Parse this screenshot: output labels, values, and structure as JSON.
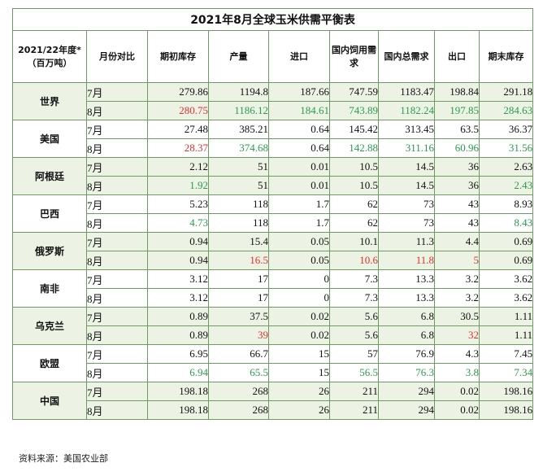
{
  "title": "2021年8月全球玉米供需平衡表",
  "header": {
    "col0": "2021/22年度*（百万吨）",
    "col1": "月份对比",
    "col2": "期初库存",
    "col3": "产量",
    "col4": "进口",
    "col5": "国内饲用需求",
    "col6": "国内总需求",
    "col7": "出口",
    "col8": "期末库存"
  },
  "regions": [
    {
      "name": "世界",
      "rows": [
        {
          "month": "7月",
          "values": [
            "279.86",
            "1194.8",
            "187.66",
            "747.59",
            "1183.47",
            "198.84",
            "291.18"
          ],
          "colors": [
            "black",
            "black",
            "black",
            "black",
            "black",
            "black",
            "black"
          ]
        },
        {
          "month": "8月",
          "values": [
            "280.75",
            "1186.12",
            "184.61",
            "743.89",
            "1182.24",
            "197.85",
            "284.63"
          ],
          "colors": [
            "red",
            "green",
            "green",
            "green",
            "green",
            "green",
            "green"
          ]
        }
      ]
    },
    {
      "name": "美国",
      "rows": [
        {
          "month": "7月",
          "values": [
            "27.48",
            "385.21",
            "0.64",
            "145.42",
            "313.45",
            "63.5",
            "36.37"
          ],
          "colors": [
            "black",
            "black",
            "black",
            "black",
            "black",
            "black",
            "black"
          ]
        },
        {
          "month": "8月",
          "values": [
            "28.37",
            "374.68",
            "0.64",
            "142.88",
            "311.16",
            "60.96",
            "31.56"
          ],
          "colors": [
            "red",
            "green",
            "black",
            "green",
            "green",
            "green",
            "green"
          ]
        }
      ]
    },
    {
      "name": "阿根廷",
      "rows": [
        {
          "month": "7月",
          "values": [
            "2.12",
            "51",
            "0.01",
            "10.5",
            "14.5",
            "36",
            "2.63"
          ],
          "colors": [
            "black",
            "black",
            "black",
            "black",
            "black",
            "black",
            "black"
          ]
        },
        {
          "month": "8月",
          "values": [
            "1.92",
            "51",
            "0.01",
            "10.5",
            "14.5",
            "36",
            "2.43"
          ],
          "colors": [
            "green",
            "black",
            "black",
            "black",
            "black",
            "black",
            "green"
          ]
        }
      ]
    },
    {
      "name": "巴西",
      "rows": [
        {
          "month": "7月",
          "values": [
            "5.23",
            "118",
            "1.7",
            "62",
            "73",
            "43",
            "8.93"
          ],
          "colors": [
            "black",
            "black",
            "black",
            "black",
            "black",
            "black",
            "black"
          ]
        },
        {
          "month": "8月",
          "values": [
            "4.73",
            "118",
            "1.7",
            "62",
            "73",
            "43",
            "8.43"
          ],
          "colors": [
            "green",
            "black",
            "black",
            "black",
            "black",
            "black",
            "green"
          ]
        }
      ]
    },
    {
      "name": "俄罗斯",
      "rows": [
        {
          "month": "7月",
          "values": [
            "0.94",
            "15.4",
            "0.05",
            "10.1",
            "11.3",
            "4.4",
            "0.69"
          ],
          "colors": [
            "black",
            "black",
            "black",
            "black",
            "black",
            "black",
            "black"
          ]
        },
        {
          "month": "8月",
          "values": [
            "0.94",
            "16.5",
            "0.05",
            "10.6",
            "11.8",
            "5",
            "0.69"
          ],
          "colors": [
            "black",
            "red",
            "black",
            "red",
            "red",
            "red",
            "black"
          ]
        }
      ]
    },
    {
      "name": "南非",
      "rows": [
        {
          "month": "7月",
          "values": [
            "3.12",
            "17",
            "0",
            "7.3",
            "13.3",
            "3.2",
            "3.62"
          ],
          "colors": [
            "black",
            "black",
            "black",
            "black",
            "black",
            "black",
            "black"
          ]
        },
        {
          "month": "8月",
          "values": [
            "3.12",
            "17",
            "0",
            "7.3",
            "13.3",
            "3.2",
            "3.62"
          ],
          "colors": [
            "black",
            "black",
            "black",
            "black",
            "black",
            "black",
            "black"
          ]
        }
      ]
    },
    {
      "name": "乌克兰",
      "rows": [
        {
          "month": "7月",
          "values": [
            "0.89",
            "37.5",
            "0.02",
            "5.6",
            "6.8",
            "30.5",
            "1.11"
          ],
          "colors": [
            "black",
            "black",
            "black",
            "black",
            "black",
            "black",
            "black"
          ]
        },
        {
          "month": "8月",
          "values": [
            "0.89",
            "39",
            "0.02",
            "5.6",
            "6.8",
            "32",
            "1.11"
          ],
          "colors": [
            "black",
            "red",
            "black",
            "black",
            "black",
            "red",
            "black"
          ]
        }
      ]
    },
    {
      "name": "欧盟",
      "rows": [
        {
          "month": "7月",
          "values": [
            "6.95",
            "66.7",
            "15",
            "57",
            "76.9",
            "4.3",
            "7.45"
          ],
          "colors": [
            "black",
            "black",
            "black",
            "black",
            "black",
            "black",
            "black"
          ]
        },
        {
          "month": "8月",
          "values": [
            "6.94",
            "65.5",
            "15",
            "56.5",
            "76.3",
            "3.8",
            "7.34"
          ],
          "colors": [
            "green",
            "green",
            "black",
            "green",
            "green",
            "green",
            "green"
          ]
        }
      ]
    },
    {
      "name": "中国",
      "rows": [
        {
          "month": "7月",
          "values": [
            "198.18",
            "268",
            "26",
            "211",
            "294",
            "0.02",
            "198.16"
          ],
          "colors": [
            "black",
            "black",
            "black",
            "black",
            "black",
            "black",
            "black"
          ]
        },
        {
          "month": "8月",
          "values": [
            "198.18",
            "268",
            "26",
            "211",
            "294",
            "0.02",
            "198.16"
          ],
          "colors": [
            "black",
            "black",
            "black",
            "black",
            "black",
            "black",
            "black"
          ]
        }
      ]
    }
  ],
  "source": "资料来源：美国农业部"
}
